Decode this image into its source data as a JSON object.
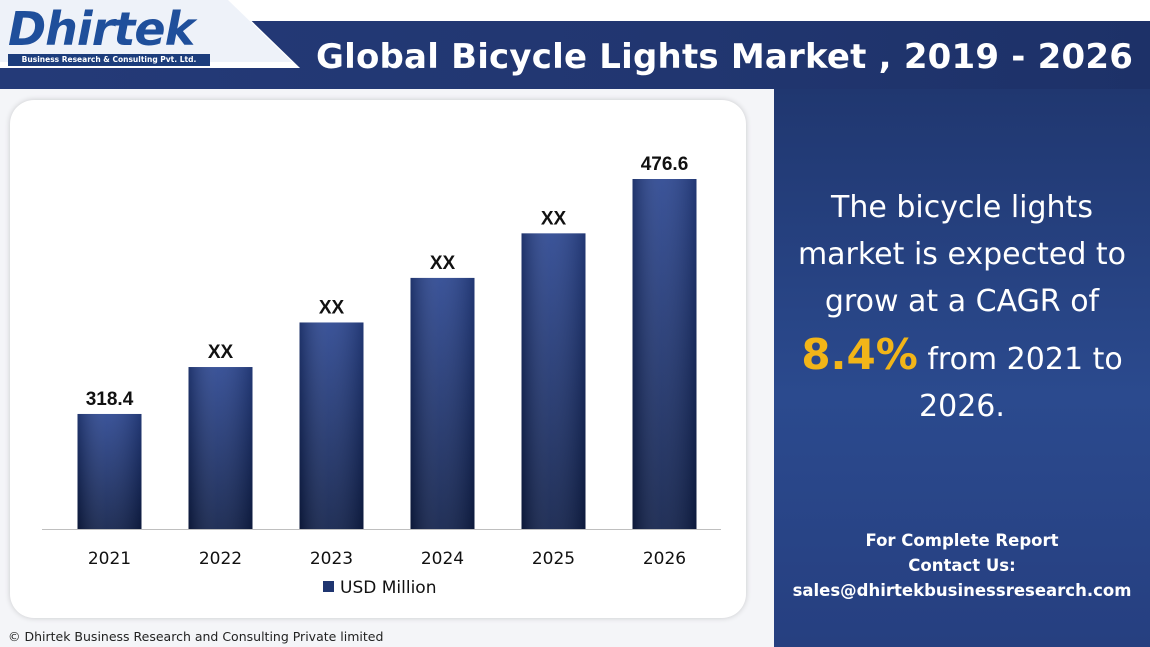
{
  "header": {
    "title": "Global Bicycle Lights Market , 2019 - 2026",
    "logo_text": "Dhirtek",
    "logo_tagline": "Business Research & Consulting Pvt. Ltd."
  },
  "side_panel": {
    "line1": "The bicycle lights",
    "line2": "market is expected to",
    "line3": "grow at a CAGR of",
    "cagr_value": "8.4%",
    "line4_suffix": " from 2021 to",
    "line5": "2026.",
    "contact_line1": "For Complete Report",
    "contact_line2": "Contact Us:",
    "contact_email": "sales@dhirtekbusinessresearch.com"
  },
  "footer": {
    "copyright": "© Dhirtek Business Research and Consulting Private limited"
  },
  "colors": {
    "header_band": "#243a78",
    "panel": "#2b4a8e",
    "highlight": "#f2b518",
    "bar_top": "#2a4590",
    "bar_bottom": "#0f1f4a"
  },
  "chart_data": {
    "type": "bar",
    "categories": [
      "2021",
      "2022",
      "2023",
      "2024",
      "2025",
      "2026"
    ],
    "series": [
      {
        "name": "USD Million",
        "values": [
          318.4,
          null,
          null,
          null,
          null,
          476.6
        ],
        "data_labels": [
          "318.4",
          "XX",
          "XX",
          "XX",
          "XX",
          "476.6"
        ]
      }
    ],
    "bar_heights_estimate": [
      318.4,
      350,
      380,
      410,
      440,
      476.6
    ],
    "legend": "bottom-center",
    "grid": false,
    "axis_visible": false
  }
}
